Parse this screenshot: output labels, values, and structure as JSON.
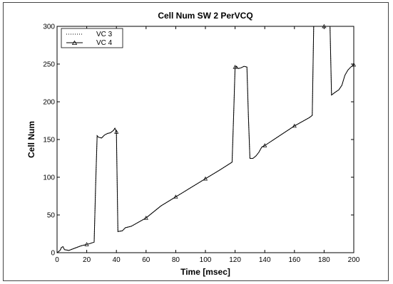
{
  "chart_data": {
    "type": "line",
    "title": "Cell Num SW 2 PerVCQ",
    "xlabel": "Time [msec]",
    "ylabel": "Cell Num",
    "xlim": [
      0,
      200
    ],
    "ylim": [
      0,
      300
    ],
    "xticks": [
      0,
      20,
      40,
      60,
      80,
      100,
      120,
      140,
      160,
      180,
      200
    ],
    "yticks": [
      0,
      50,
      100,
      150,
      200,
      250,
      300
    ],
    "xtick_labels": [
      "0",
      "20",
      "40",
      "60",
      "80",
      "100",
      "120",
      "140",
      "160",
      "180",
      "200"
    ],
    "ytick_labels": [
      "0",
      "50",
      "100",
      "150",
      "200",
      "250",
      "300"
    ],
    "grid": false,
    "legend_position": "top-left",
    "series": [
      {
        "name": "VC 3",
        "style": "dotted",
        "x": [
          0,
          2,
          3,
          4,
          5,
          8,
          12,
          16,
          20,
          22,
          25,
          26,
          27,
          28,
          30,
          32,
          34,
          36,
          38,
          39,
          40,
          41,
          44,
          46,
          50,
          60,
          70,
          80,
          90,
          100,
          110,
          118,
          119,
          120,
          121,
          122,
          124,
          126,
          128,
          129,
          130,
          132,
          134,
          136,
          138,
          140,
          150,
          160,
          170,
          172,
          173,
          174,
          175,
          176,
          178,
          180,
          182,
          183,
          184,
          185,
          187,
          190,
          192,
          194,
          196,
          198,
          200
        ],
        "values": [
          0,
          3,
          7,
          8,
          4,
          3,
          6,
          9,
          11,
          12,
          14,
          90,
          155,
          153,
          152,
          156,
          158,
          159,
          162,
          165,
          160,
          28,
          29,
          33,
          35,
          46,
          62,
          74,
          86,
          98,
          110,
          120,
          180,
          246,
          247,
          244,
          245,
          247,
          246,
          180,
          125,
          125,
          128,
          133,
          140,
          142,
          155,
          168,
          179,
          182,
          300,
          300,
          300,
          300,
          300,
          300,
          300,
          300,
          300,
          209,
          212,
          216,
          222,
          235,
          242,
          246,
          249
        ]
      },
      {
        "name": "VC 4",
        "style": "solid",
        "marker": "triangle",
        "x": [
          0,
          2,
          3,
          4,
          5,
          8,
          12,
          16,
          20,
          22,
          25,
          26,
          27,
          28,
          30,
          32,
          34,
          36,
          38,
          39,
          40,
          41,
          44,
          46,
          50,
          60,
          70,
          80,
          90,
          100,
          110,
          118,
          119,
          120,
          121,
          122,
          124,
          126,
          128,
          129,
          130,
          132,
          134,
          136,
          138,
          140,
          150,
          160,
          170,
          172,
          173,
          174,
          175,
          176,
          178,
          180,
          182,
          183,
          184,
          185,
          187,
          190,
          192,
          194,
          196,
          198,
          200
        ],
        "values": [
          0,
          3,
          7,
          8,
          4,
          3,
          6,
          9,
          11,
          12,
          14,
          90,
          155,
          153,
          152,
          156,
          158,
          159,
          162,
          165,
          160,
          28,
          29,
          33,
          35,
          46,
          62,
          74,
          86,
          98,
          110,
          120,
          180,
          246,
          247,
          244,
          245,
          247,
          246,
          180,
          125,
          125,
          128,
          133,
          140,
          142,
          155,
          168,
          179,
          182,
          300,
          300,
          300,
          300,
          300,
          300,
          300,
          300,
          300,
          209,
          212,
          216,
          222,
          235,
          242,
          246,
          249
        ]
      }
    ]
  }
}
